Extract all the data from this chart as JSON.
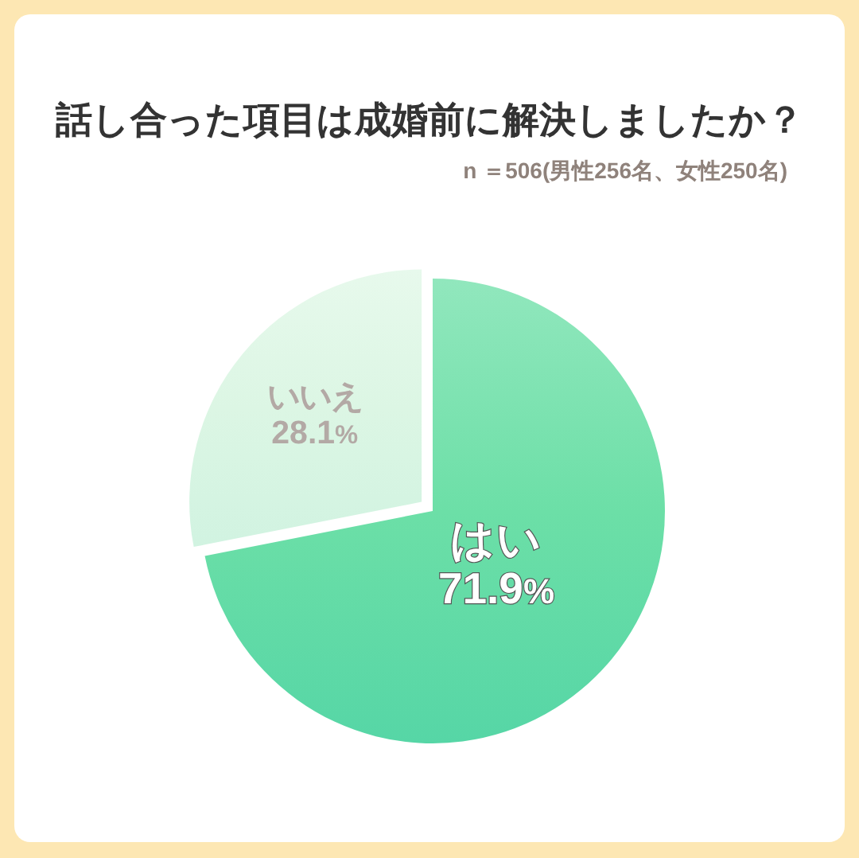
{
  "chart_data": {
    "type": "pie",
    "title": "話し合った項目は成婚前に解決しましたか？",
    "subtitle": "n ＝506(男性256名、女性250名)",
    "categories": [
      "はい",
      "いいえ"
    ],
    "values": [
      71.9,
      28.1
    ],
    "colors": [
      "#6cdfa7",
      "#dcf6e4"
    ],
    "value_labels": [
      "71.9%",
      "28.1%"
    ]
  }
}
